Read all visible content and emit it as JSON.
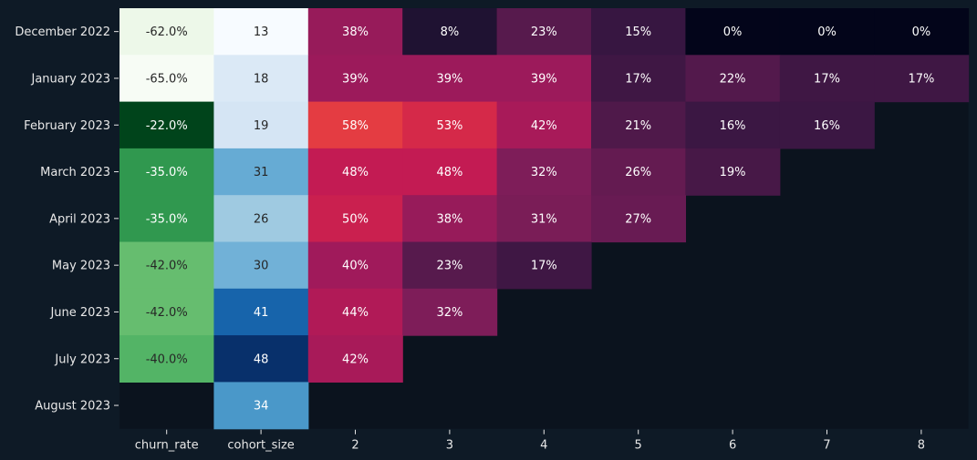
{
  "chart_data": {
    "type": "heatmap",
    "rows": [
      "December 2022",
      "January 2023",
      "February 2023",
      "March 2023",
      "April 2023",
      "May 2023",
      "June 2023",
      "July 2023",
      "August 2023"
    ],
    "columns": [
      "churn_rate",
      "cohort_size",
      "2",
      "3",
      "4",
      "5",
      "6",
      "7",
      "8"
    ],
    "churn_rate": [
      -62.0,
      -65.0,
      -22.0,
      -35.0,
      -35.0,
      -42.0,
      -42.0,
      -40.0,
      null
    ],
    "churn_rate_labels": [
      "-62.0%",
      "-65.0%",
      "-22.0%",
      "-35.0%",
      "-35.0%",
      "-42.0%",
      "-42.0%",
      "-40.0%",
      null
    ],
    "cohort_size": [
      13,
      18,
      19,
      31,
      26,
      30,
      41,
      48,
      34
    ],
    "retention": [
      [
        38,
        8,
        23,
        15,
        0,
        0,
        0
      ],
      [
        39,
        39,
        39,
        17,
        22,
        17,
        17
      ],
      [
        58,
        53,
        42,
        21,
        16,
        16,
        null
      ],
      [
        48,
        48,
        32,
        26,
        19,
        null,
        null
      ],
      [
        50,
        38,
        31,
        27,
        null,
        null,
        null
      ],
      [
        40,
        23,
        17,
        null,
        null,
        null,
        null
      ],
      [
        44,
        32,
        null,
        null,
        null,
        null,
        null
      ],
      [
        42,
        null,
        null,
        null,
        null,
        null,
        null
      ],
      [
        null,
        null,
        null,
        null,
        null,
        null,
        null
      ]
    ],
    "colormaps": {
      "churn_rate": "Greens (reversed)",
      "cohort_size": "Blues",
      "retention": "rocket"
    },
    "background_color": "#0e1a26",
    "empty_cell_color": "#0b131e",
    "tick_label_color": "#e8e8e8"
  }
}
